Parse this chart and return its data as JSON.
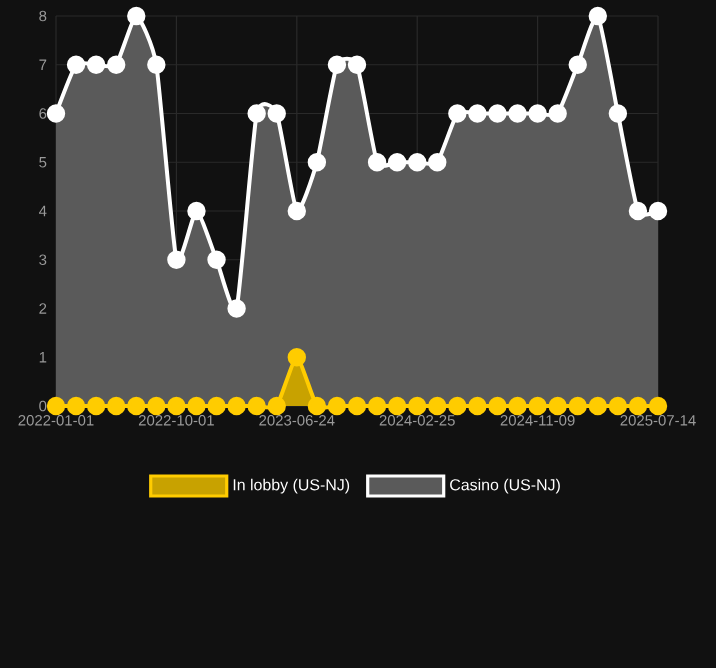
{
  "chart_data": {
    "type": "area",
    "categories": [
      "2022-01-01",
      null,
      null,
      null,
      null,
      null,
      "2022-10-01",
      null,
      null,
      null,
      null,
      null,
      "2023-06-24",
      null,
      null,
      null,
      null,
      null,
      "2024-02-25",
      null,
      null,
      null,
      null,
      null,
      "2024-11-09",
      null,
      null,
      null,
      null,
      null,
      "2025-07-14"
    ],
    "series": [
      {
        "name": "In lobby (US-NJ)",
        "color": "#ffcc00",
        "values": [
          0,
          0,
          0,
          0,
          0,
          0,
          0,
          0,
          0,
          0,
          0,
          0,
          1,
          0,
          0,
          0,
          0,
          0,
          0,
          0,
          0,
          0,
          0,
          0,
          0,
          0,
          0,
          0,
          0,
          0,
          0
        ]
      },
      {
        "name": "Casino (US-NJ)",
        "color": "#ffffff",
        "values": [
          6,
          7,
          7,
          7,
          8,
          7,
          3,
          4,
          3,
          2,
          6,
          6,
          4,
          5,
          7,
          7,
          5,
          5,
          5,
          5,
          6,
          6,
          6,
          6,
          6,
          6,
          7,
          8,
          6,
          4,
          4
        ]
      }
    ],
    "ylim": [
      0,
      8
    ],
    "yticks": [
      0,
      1,
      2,
      3,
      4,
      5,
      6,
      7,
      8
    ],
    "grid": true,
    "legend": "bottom",
    "marker": "circle"
  }
}
